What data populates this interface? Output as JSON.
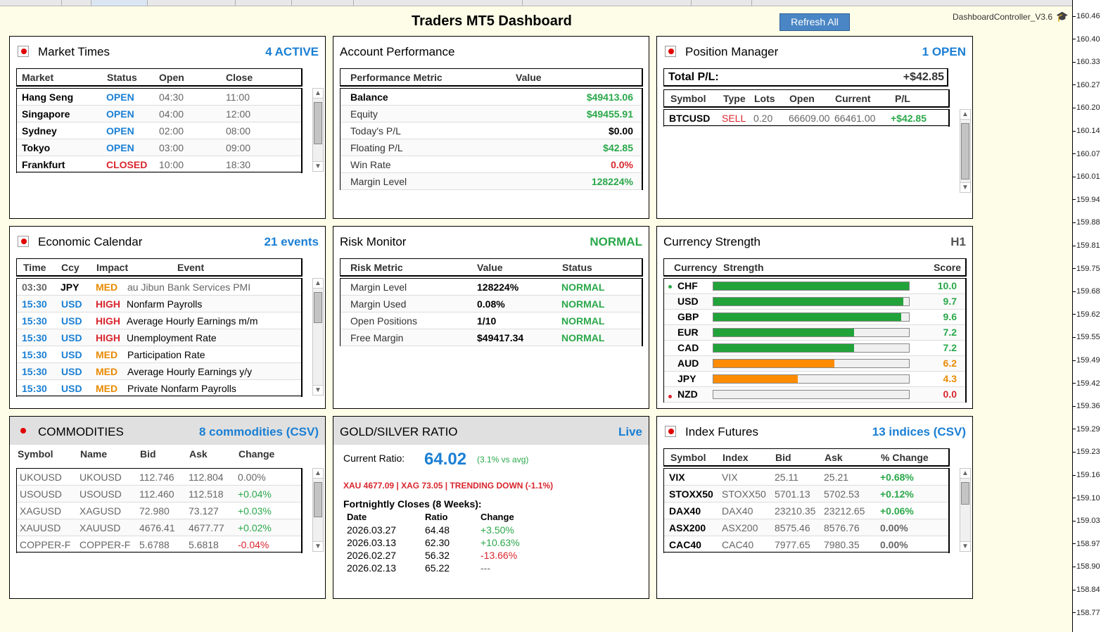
{
  "header": {
    "title": "Traders MT5 Dashboard",
    "refresh_label": "Refresh All",
    "controller": "DashboardController_V3.6"
  },
  "price_axis": [
    "160.46",
    "160.40",
    "160.33",
    "160.27",
    "160.20",
    "160.14",
    "160.07",
    "160.01",
    "159.94",
    "159.88",
    "159.81",
    "159.75",
    "159.68",
    "159.62",
    "159.55",
    "159.49",
    "159.42",
    "159.36",
    "159.29",
    "159.23",
    "159.16",
    "159.10",
    "159.03",
    "158.97",
    "158.90",
    "158.84",
    "158.77"
  ],
  "market_times": {
    "title": "Market Times",
    "badge": "4 ACTIVE",
    "columns": [
      "Market",
      "Status",
      "Open",
      "Close"
    ],
    "rows": [
      {
        "market": "Hang Seng",
        "status": "OPEN",
        "open": "04:30",
        "close": "11:00"
      },
      {
        "market": "Singapore",
        "status": "OPEN",
        "open": "04:00",
        "close": "12:00"
      },
      {
        "market": "Sydney",
        "status": "OPEN",
        "open": "02:00",
        "close": "08:00"
      },
      {
        "market": "Tokyo",
        "status": "OPEN",
        "open": "03:00",
        "close": "09:00"
      },
      {
        "market": "Frankfurt",
        "status": "CLOSED",
        "open": "10:00",
        "close": "18:30"
      }
    ]
  },
  "account": {
    "title": "Account Performance",
    "columns": [
      "Performance Metric",
      "Value"
    ],
    "rows": [
      {
        "metric": "Balance",
        "value": "$49413.06",
        "color": "green",
        "bold": true
      },
      {
        "metric": "Equity",
        "value": "$49455.91",
        "color": "green",
        "bold": false
      },
      {
        "metric": "Today's P/L",
        "value": "$0.00",
        "color": "black",
        "bold": false
      },
      {
        "metric": "Floating P/L",
        "value": "$42.85",
        "color": "green",
        "bold": false
      },
      {
        "metric": "Win Rate",
        "value": "0.0%",
        "color": "red",
        "bold": false
      },
      {
        "metric": "Margin Level",
        "value": "128224%",
        "color": "green",
        "bold": false
      }
    ]
  },
  "positions": {
    "title": "Position Manager",
    "badge": "1 OPEN",
    "total_label": "Total P/L:",
    "total_value": "+$42.85",
    "columns": [
      "Symbol",
      "Type",
      "Lots",
      "Open",
      "Current",
      "P/L"
    ],
    "rows": [
      {
        "symbol": "BTCUSD",
        "type": "SELL",
        "lots": "0.20",
        "open": "66609.00",
        "current": "66461.00",
        "pl": "+$42.85"
      }
    ]
  },
  "calendar": {
    "title": "Economic Calendar",
    "badge": "21 events",
    "columns": [
      "Time",
      "Ccy",
      "Impact",
      "Event"
    ],
    "rows": [
      {
        "time": "03:30",
        "ccy": "JPY",
        "impact": "MED",
        "event": "au Jibun Bank Services PMI",
        "past": true
      },
      {
        "time": "15:30",
        "ccy": "USD",
        "impact": "HIGH",
        "event": "Nonfarm Payrolls",
        "past": false
      },
      {
        "time": "15:30",
        "ccy": "USD",
        "impact": "HIGH",
        "event": "Average Hourly Earnings m/m",
        "past": false
      },
      {
        "time": "15:30",
        "ccy": "USD",
        "impact": "HIGH",
        "event": "Unemployment Rate",
        "past": false
      },
      {
        "time": "15:30",
        "ccy": "USD",
        "impact": "MED",
        "event": "Participation Rate",
        "past": false
      },
      {
        "time": "15:30",
        "ccy": "USD",
        "impact": "MED",
        "event": "Average Hourly Earnings y/y",
        "past": false
      },
      {
        "time": "15:30",
        "ccy": "USD",
        "impact": "MED",
        "event": "Private Nonfarm Payrolls",
        "past": false
      }
    ]
  },
  "risk": {
    "title": "Risk Monitor",
    "badge": "NORMAL",
    "columns": [
      "Risk Metric",
      "Value",
      "Status"
    ],
    "rows": [
      {
        "metric": "Margin Level",
        "value": "128224%",
        "status": "NORMAL"
      },
      {
        "metric": "Margin Used",
        "value": "0.08%",
        "status": "NORMAL"
      },
      {
        "metric": "Open Positions",
        "value": "1/10",
        "status": "NORMAL"
      },
      {
        "metric": "Free Margin",
        "value": "$49417.34",
        "status": "NORMAL"
      }
    ]
  },
  "strength": {
    "title": "Currency Strength",
    "badge": "H1",
    "columns": [
      "Currency",
      "Strength",
      "Score"
    ],
    "rows": [
      {
        "ccy": "CHF",
        "score": "10.0",
        "level": 1.0,
        "color": "g",
        "marker": "green"
      },
      {
        "ccy": "USD",
        "score": "9.7",
        "level": 0.97,
        "color": "g",
        "marker": ""
      },
      {
        "ccy": "GBP",
        "score": "9.6",
        "level": 0.96,
        "color": "g",
        "marker": ""
      },
      {
        "ccy": "EUR",
        "score": "7.2",
        "level": 0.72,
        "color": "g",
        "marker": ""
      },
      {
        "ccy": "CAD",
        "score": "7.2",
        "level": 0.72,
        "color": "g",
        "marker": ""
      },
      {
        "ccy": "AUD",
        "score": "6.2",
        "level": 0.62,
        "color": "o",
        "marker": ""
      },
      {
        "ccy": "JPY",
        "score": "4.3",
        "level": 0.43,
        "color": "o",
        "marker": ""
      },
      {
        "ccy": "NZD",
        "score": "0.0",
        "level": 0.0,
        "color": "o",
        "marker": "red"
      }
    ]
  },
  "commodities": {
    "title": "COMMODITIES",
    "badge": "8 commodities (CSV)",
    "columns": [
      "Symbol",
      "Name",
      "Bid",
      "Ask",
      "Change"
    ],
    "rows": [
      {
        "symbol": "UKOUSD",
        "name": "UKOUSD",
        "bid": "112.746",
        "ask": "112.804",
        "change": "0.00%",
        "dir": "flat"
      },
      {
        "symbol": "USOUSD",
        "name": "USOUSD",
        "bid": "112.460",
        "ask": "112.518",
        "change": "+0.04%",
        "dir": "up"
      },
      {
        "symbol": "XAGUSD",
        "name": "XAGUSD",
        "bid": "72.980",
        "ask": "73.127",
        "change": "+0.03%",
        "dir": "up"
      },
      {
        "symbol": "XAUUSD",
        "name": "XAUUSD",
        "bid": "4676.41",
        "ask": "4677.77",
        "change": "+0.02%",
        "dir": "up"
      },
      {
        "symbol": "COPPER-F",
        "name": "COPPER-F",
        "bid": "5.6788",
        "ask": "5.6818",
        "change": "-0.04%",
        "dir": "down"
      }
    ]
  },
  "ratio": {
    "title": "GOLD/SILVER RATIO",
    "badge": "Live",
    "current_label": "Current Ratio:",
    "current_value": "64.02",
    "vs_avg": "(3.1% vs avg)",
    "trend_line": "XAU 4677.09 | XAG 73.05 | TRENDING DOWN (-1.1%)",
    "closes_title": "Fortnightly Closes (8 Weeks):",
    "columns": [
      "Date",
      "Ratio",
      "Change"
    ],
    "rows": [
      {
        "date": "2026.03.27",
        "ratio": "64.48",
        "change": "+3.50%",
        "dir": "up"
      },
      {
        "date": "2026.03.13",
        "ratio": "62.30",
        "change": "+10.63%",
        "dir": "up"
      },
      {
        "date": "2026.02.27",
        "ratio": "56.32",
        "change": "-13.66%",
        "dir": "down"
      },
      {
        "date": "2026.02.13",
        "ratio": "65.22",
        "change": "---",
        "dir": "flat"
      }
    ]
  },
  "indices": {
    "title": "Index Futures",
    "badge": "13 indices (CSV)",
    "columns": [
      "Symbol",
      "Index",
      "Bid",
      "Ask",
      "% Change"
    ],
    "rows": [
      {
        "symbol": "VIX",
        "index": "VIX",
        "bid": "25.11",
        "ask": "25.21",
        "change": "+0.68%",
        "dir": "up"
      },
      {
        "symbol": "STOXX50",
        "index": "STOXX50",
        "bid": "5701.13",
        "ask": "5702.53",
        "change": "+0.12%",
        "dir": "up"
      },
      {
        "symbol": "DAX40",
        "index": "DAX40",
        "bid": "23210.35",
        "ask": "23212.65",
        "change": "+0.06%",
        "dir": "up"
      },
      {
        "symbol": "ASX200",
        "index": "ASX200",
        "bid": "8575.46",
        "ask": "8576.76",
        "change": "0.00%",
        "dir": "flat"
      },
      {
        "symbol": "CAC40",
        "index": "CAC40",
        "bid": "7977.65",
        "ask": "7980.35",
        "change": "0.00%",
        "dir": "flat"
      }
    ]
  }
}
